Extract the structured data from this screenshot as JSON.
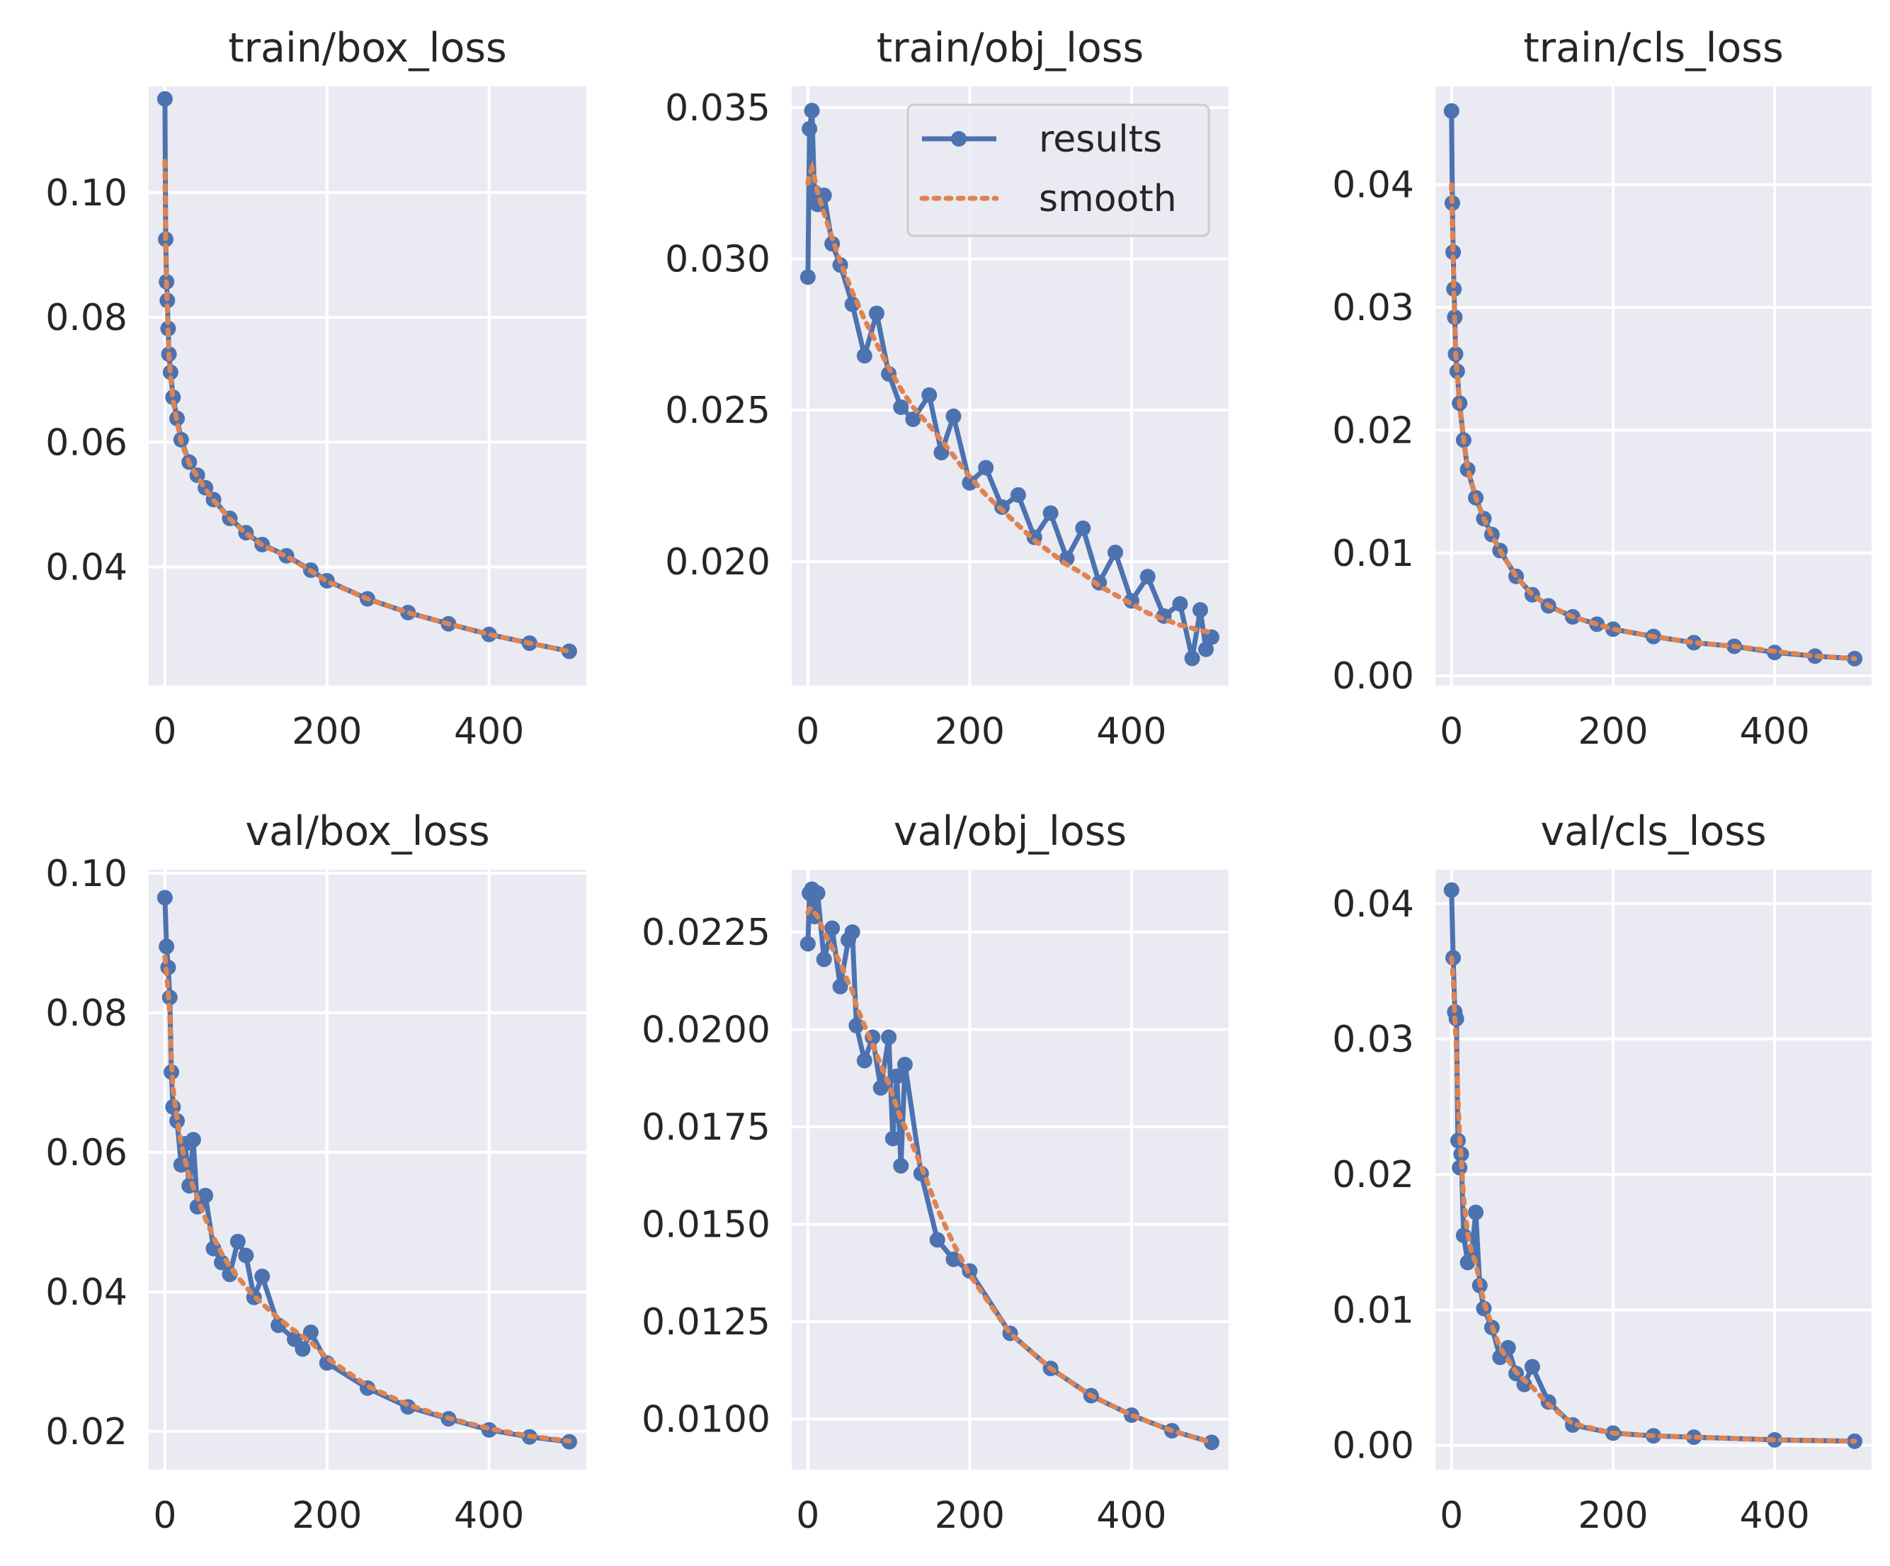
{
  "chart_data": [
    {
      "type": "line",
      "title": "train/box_loss",
      "xlabel": "",
      "ylabel": "",
      "xlim": [
        -20,
        520
      ],
      "ylim": [
        0.021,
        0.117
      ],
      "xticks": [
        0,
        200,
        400
      ],
      "xtick_labels": [
        "0",
        "200",
        "400"
      ],
      "yticks": [
        0.04,
        0.06,
        0.08,
        0.1
      ],
      "ytick_labels": [
        "0.04",
        "0.06",
        "0.08",
        "0.10"
      ],
      "grid": true,
      "legend": null,
      "x": [
        0,
        1,
        2,
        3,
        4,
        5,
        7,
        10,
        15,
        20,
        30,
        40,
        50,
        60,
        80,
        100,
        120,
        150,
        180,
        200,
        250,
        300,
        350,
        400,
        450,
        499
      ],
      "series": [
        {
          "name": "results",
          "values": [
            0.115,
            0.0925,
            0.0857,
            0.0827,
            0.0782,
            0.0741,
            0.0712,
            0.0672,
            0.0638,
            0.0604,
            0.0568,
            0.0547,
            0.0527,
            0.0508,
            0.0478,
            0.0455,
            0.0436,
            0.0418,
            0.0395,
            0.0378,
            0.0349,
            0.0327,
            0.0309,
            0.0292,
            0.0278,
            0.0265
          ]
        },
        {
          "name": "smooth",
          "values": [
            0.105,
            0.0905,
            0.0848,
            0.0812,
            0.0775,
            0.0738,
            0.0705,
            0.0668,
            0.0632,
            0.0601,
            0.0566,
            0.0545,
            0.0525,
            0.0507,
            0.0477,
            0.0454,
            0.0435,
            0.0417,
            0.0394,
            0.0377,
            0.0349,
            0.0327,
            0.0309,
            0.0292,
            0.0278,
            0.0265
          ]
        }
      ]
    },
    {
      "type": "line",
      "title": "train/obj_loss",
      "xlabel": "",
      "ylabel": "",
      "xlim": [
        -20,
        520
      ],
      "ylim": [
        0.0159,
        0.0357
      ],
      "xticks": [
        0,
        200,
        400
      ],
      "xtick_labels": [
        "0",
        "200",
        "400"
      ],
      "yticks": [
        0.02,
        0.025,
        0.03,
        0.035
      ],
      "ytick_labels": [
        "0.020",
        "0.025",
        "0.030",
        "0.035"
      ],
      "grid": true,
      "legend": {
        "position": "upper right",
        "entries": [
          "results",
          "smooth"
        ]
      },
      "x": [
        0,
        2,
        5,
        8,
        12,
        20,
        30,
        40,
        55,
        70,
        85,
        100,
        115,
        130,
        150,
        165,
        180,
        200,
        220,
        240,
        260,
        280,
        300,
        320,
        340,
        360,
        380,
        400,
        420,
        440,
        460,
        475,
        485,
        492,
        499
      ],
      "series": [
        {
          "name": "results",
          "values": [
            0.0294,
            0.0343,
            0.0349,
            0.0322,
            0.0318,
            0.0321,
            0.0305,
            0.0298,
            0.0285,
            0.0268,
            0.0282,
            0.0262,
            0.0251,
            0.0247,
            0.0255,
            0.0236,
            0.0248,
            0.0226,
            0.0231,
            0.0218,
            0.0222,
            0.0208,
            0.0216,
            0.0201,
            0.0211,
            0.0193,
            0.0203,
            0.0187,
            0.0195,
            0.0182,
            0.0186,
            0.0168,
            0.0184,
            0.0171,
            0.0175
          ]
        },
        {
          "name": "smooth",
          "values": [
            0.0325,
            0.0328,
            0.033,
            0.0327,
            0.0322,
            0.0315,
            0.0307,
            0.0299,
            0.0289,
            0.028,
            0.0272,
            0.0264,
            0.0257,
            0.0251,
            0.0245,
            0.024,
            0.0235,
            0.0228,
            0.0222,
            0.0217,
            0.0212,
            0.0207,
            0.0203,
            0.0199,
            0.0196,
            0.0192,
            0.0189,
            0.0186,
            0.0183,
            0.0181,
            0.0179,
            0.0178,
            0.0177,
            0.0177,
            0.0176
          ]
        }
      ]
    },
    {
      "type": "line",
      "title": "train/cls_loss",
      "xlabel": "",
      "ylabel": "",
      "xlim": [
        -20,
        520
      ],
      "ylim": [
        -0.0008,
        0.048
      ],
      "xticks": [
        0,
        200,
        400
      ],
      "xtick_labels": [
        "0",
        "200",
        "400"
      ],
      "yticks": [
        0.0,
        0.01,
        0.02,
        0.03,
        0.04
      ],
      "ytick_labels": [
        "0.00",
        "0.01",
        "0.02",
        "0.03",
        "0.04"
      ],
      "grid": true,
      "legend": null,
      "x": [
        0,
        1,
        2,
        3,
        4,
        5,
        7,
        10,
        15,
        20,
        30,
        40,
        50,
        60,
        80,
        100,
        120,
        150,
        180,
        200,
        250,
        300,
        350,
        400,
        450,
        499
      ],
      "series": [
        {
          "name": "results",
          "values": [
            0.046,
            0.0385,
            0.0345,
            0.0315,
            0.0292,
            0.0262,
            0.0248,
            0.0222,
            0.0192,
            0.0168,
            0.0145,
            0.0128,
            0.0115,
            0.0102,
            0.0081,
            0.0066,
            0.0057,
            0.0048,
            0.0042,
            0.0038,
            0.0032,
            0.0027,
            0.0024,
            0.0019,
            0.0016,
            0.0014
          ]
        },
        {
          "name": "smooth",
          "values": [
            0.04,
            0.0368,
            0.0338,
            0.031,
            0.0287,
            0.0264,
            0.0246,
            0.0221,
            0.0192,
            0.0169,
            0.0145,
            0.0128,
            0.0114,
            0.0102,
            0.0081,
            0.0066,
            0.0057,
            0.0048,
            0.0042,
            0.0038,
            0.0032,
            0.0027,
            0.0024,
            0.002,
            0.0016,
            0.0014
          ]
        }
      ]
    },
    {
      "type": "line",
      "title": "val/box_loss",
      "xlabel": "",
      "ylabel": "",
      "xlim": [
        -20,
        520
      ],
      "ylim": [
        0.0145,
        0.1005
      ],
      "xticks": [
        0,
        200,
        400
      ],
      "xtick_labels": [
        "0",
        "200",
        "400"
      ],
      "yticks": [
        0.02,
        0.04,
        0.06,
        0.08,
        0.1
      ],
      "ytick_labels": [
        "0.02",
        "0.04",
        "0.06",
        "0.08",
        "0.10"
      ],
      "grid": true,
      "legend": null,
      "x": [
        0,
        2,
        4,
        6,
        8,
        10,
        15,
        20,
        25,
        30,
        35,
        40,
        50,
        60,
        70,
        80,
        90,
        100,
        110,
        120,
        140,
        160,
        170,
        180,
        200,
        250,
        300,
        350,
        400,
        450,
        499
      ],
      "series": [
        {
          "name": "results",
          "values": [
            0.0965,
            0.0895,
            0.0865,
            0.0822,
            0.0715,
            0.0665,
            0.0645,
            0.0582,
            0.0612,
            0.0552,
            0.0618,
            0.0522,
            0.0538,
            0.0462,
            0.0442,
            0.0425,
            0.0472,
            0.0452,
            0.0392,
            0.0422,
            0.0352,
            0.0332,
            0.0318,
            0.0342,
            0.0298,
            0.0262,
            0.0235,
            0.0218,
            0.0202,
            0.0192,
            0.0185
          ]
        },
        {
          "name": "smooth",
          "values": [
            0.088,
            0.0855,
            0.0828,
            0.0798,
            0.0735,
            0.0692,
            0.0648,
            0.0612,
            0.0588,
            0.0566,
            0.055,
            0.0535,
            0.0505,
            0.0478,
            0.0455,
            0.0436,
            0.0421,
            0.0407,
            0.0394,
            0.0383,
            0.0362,
            0.0344,
            0.0336,
            0.0328,
            0.0305,
            0.0265,
            0.0238,
            0.0219,
            0.0204,
            0.0193,
            0.0186
          ]
        }
      ]
    },
    {
      "type": "line",
      "title": "val/obj_loss",
      "xlabel": "",
      "ylabel": "",
      "xlim": [
        -20,
        520
      ],
      "ylim": [
        0.0087,
        0.0241
      ],
      "xticks": [
        0,
        200,
        400
      ],
      "xtick_labels": [
        "0",
        "200",
        "400"
      ],
      "yticks": [
        0.01,
        0.0125,
        0.015,
        0.0175,
        0.02,
        0.0225
      ],
      "ytick_labels": [
        "0.0100",
        "0.0125",
        "0.0150",
        "0.0175",
        "0.0200",
        "0.0225"
      ],
      "grid": true,
      "legend": null,
      "x": [
        0,
        2,
        5,
        8,
        12,
        20,
        30,
        40,
        50,
        55,
        60,
        70,
        80,
        90,
        100,
        105,
        110,
        115,
        120,
        140,
        160,
        180,
        200,
        250,
        300,
        350,
        400,
        450,
        499
      ],
      "series": [
        {
          "name": "results",
          "values": [
            0.0222,
            0.0235,
            0.0236,
            0.0229,
            0.0235,
            0.0218,
            0.0226,
            0.0211,
            0.0223,
            0.0225,
            0.0201,
            0.0192,
            0.0198,
            0.0185,
            0.0198,
            0.0172,
            0.0188,
            0.0165,
            0.0191,
            0.0163,
            0.0146,
            0.0141,
            0.0138,
            0.0122,
            0.0113,
            0.0106,
            0.0101,
            0.0097,
            0.0094
          ]
        },
        {
          "name": "smooth",
          "values": [
            0.023,
            0.0231,
            0.0231,
            0.023,
            0.0229,
            0.0225,
            0.0221,
            0.0217,
            0.0212,
            0.021,
            0.0206,
            0.0201,
            0.0196,
            0.0191,
            0.0186,
            0.0183,
            0.018,
            0.0177,
            0.0175,
            0.0165,
            0.0154,
            0.0145,
            0.0137,
            0.0122,
            0.0113,
            0.0106,
            0.0101,
            0.0097,
            0.0094
          ]
        }
      ]
    },
    {
      "type": "line",
      "title": "val/cls_loss",
      "xlabel": "",
      "ylabel": "",
      "xlim": [
        -20,
        520
      ],
      "ylim": [
        -0.0018,
        0.0425
      ],
      "xticks": [
        0,
        200,
        400
      ],
      "xtick_labels": [
        "0",
        "200",
        "400"
      ],
      "yticks": [
        0.0,
        0.01,
        0.02,
        0.03,
        0.04
      ],
      "ytick_labels": [
        "0.00",
        "0.01",
        "0.02",
        "0.03",
        "0.04"
      ],
      "grid": true,
      "legend": null,
      "x": [
        0,
        2,
        4,
        6,
        8,
        10,
        12,
        15,
        20,
        25,
        30,
        35,
        40,
        50,
        60,
        70,
        80,
        90,
        100,
        120,
        150,
        200,
        250,
        300,
        400,
        499
      ],
      "series": [
        {
          "name": "results",
          "values": [
            0.041,
            0.036,
            0.032,
            0.0315,
            0.0225,
            0.0205,
            0.0215,
            0.0155,
            0.0135,
            0.0142,
            0.0172,
            0.0118,
            0.0101,
            0.0087,
            0.0065,
            0.0072,
            0.0053,
            0.0045,
            0.0058,
            0.0032,
            0.0015,
            0.0009,
            0.0007,
            0.0006,
            0.0004,
            0.0003
          ]
        },
        {
          "name": "smooth",
          "values": [
            0.036,
            0.0345,
            0.0315,
            0.0295,
            0.0255,
            0.0228,
            0.0212,
            0.0182,
            0.0156,
            0.0142,
            0.0135,
            0.012,
            0.0106,
            0.0088,
            0.0072,
            0.0063,
            0.0054,
            0.0048,
            0.0043,
            0.003,
            0.0016,
            0.0009,
            0.0007,
            0.0006,
            0.0004,
            0.0003
          ]
        }
      ]
    }
  ],
  "colors": {
    "background": "#ffffff",
    "panel": "#eaeaf2",
    "grid": "#ffffff",
    "results": "#4c72b0",
    "smooth": "#dd8452",
    "text": "#262626",
    "legend_edge": "#cccccc"
  }
}
